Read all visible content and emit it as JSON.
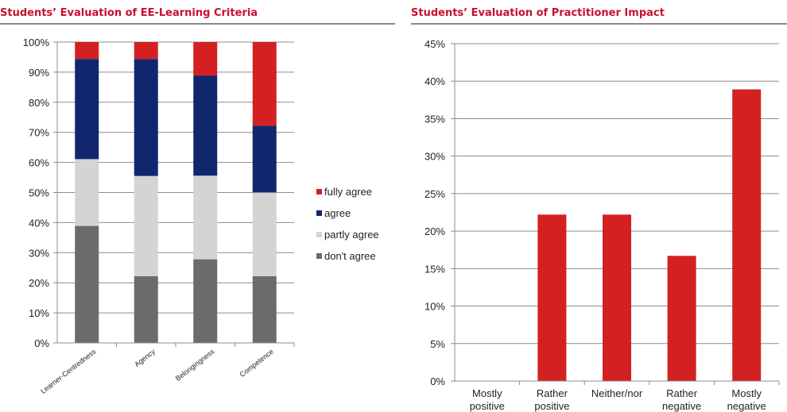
{
  "chart_data": [
    {
      "type": "bar",
      "stacked": true,
      "title": "Students’ Evaluation of EE-Learning Criteria",
      "categories": [
        "Learner-Centredness",
        "Agency",
        "Belongingness",
        "Competence"
      ],
      "ylim": [
        0,
        100
      ],
      "yticks": [
        "0%",
        "10%",
        "20%",
        "30%",
        "40%",
        "50%",
        "60%",
        "70%",
        "80%",
        "90%",
        "100%"
      ],
      "grid": true,
      "legend_position": "right",
      "series": [
        {
          "name": "don't agree",
          "color": "#6b6b6b",
          "values": [
            38.9,
            22.2,
            27.8,
            22.2
          ]
        },
        {
          "name": "partly agree",
          "color": "#d4d4d4",
          "values": [
            22.2,
            33.3,
            27.8,
            27.8
          ]
        },
        {
          "name": "agree",
          "color": "#10276e",
          "values": [
            33.3,
            38.9,
            33.3,
            22.2
          ]
        },
        {
          "name": "fully agree",
          "color": "#d42020",
          "values": [
            5.6,
            5.6,
            11.1,
            27.8
          ]
        }
      ],
      "legend_order": [
        "fully agree",
        "agree",
        "partly agree",
        "don't agree"
      ]
    },
    {
      "type": "bar",
      "title": "Students’ Evaluation of Practitioner Impact",
      "categories": [
        [
          "Mostly",
          "positive"
        ],
        [
          "Rather",
          "positive"
        ],
        [
          "Neither/nor"
        ],
        [
          "Rather",
          "negative"
        ],
        [
          "Mostly",
          "negative"
        ]
      ],
      "values": [
        0,
        22.2,
        22.2,
        16.7,
        38.9
      ],
      "color": "#d42020",
      "ylim": [
        0,
        45
      ],
      "yticks": [
        "0%",
        "5%",
        "10%",
        "15%",
        "20%",
        "25%",
        "30%",
        "35%",
        "40%",
        "45%"
      ],
      "grid": true
    }
  ],
  "colors": {
    "title": "#c8102e",
    "gridline": "#8c8c8c",
    "rule": "#8a8a8a"
  }
}
